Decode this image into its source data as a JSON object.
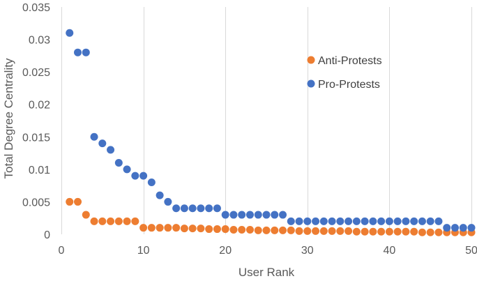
{
  "chart_data": {
    "type": "scatter",
    "title": "",
    "xlabel": "User Rank",
    "ylabel": "Total Degree Centrality",
    "xlim": [
      0,
      50
    ],
    "ylim": [
      0,
      0.035
    ],
    "x_ticks": [
      "0",
      "10",
      "20",
      "30",
      "40",
      "50"
    ],
    "y_ticks": [
      "0",
      "0.005",
      "0.01",
      "0.015",
      "0.02",
      "0.025",
      "0.03",
      "0.035"
    ],
    "grid": "vertical major gridlines on",
    "legend_position": "center-right",
    "series": [
      {
        "name": "Anti-Protests",
        "color": "#ed7d31",
        "x": [
          1,
          2,
          3,
          4,
          5,
          6,
          7,
          8,
          9,
          10,
          11,
          12,
          13,
          14,
          15,
          16,
          17,
          18,
          19,
          20,
          21,
          22,
          23,
          24,
          25,
          26,
          27,
          28,
          29,
          30,
          31,
          32,
          33,
          34,
          35,
          36,
          37,
          38,
          39,
          40,
          41,
          42,
          43,
          44,
          45,
          46,
          47,
          48,
          49,
          50
        ],
        "y": [
          0.005,
          0.005,
          0.003,
          0.002,
          0.002,
          0.002,
          0.002,
          0.002,
          0.002,
          0.001,
          0.001,
          0.001,
          0.001,
          0.001,
          0.0009,
          0.0009,
          0.0009,
          0.0008,
          0.0008,
          0.0008,
          0.0007,
          0.0007,
          0.0007,
          0.0006,
          0.0006,
          0.0006,
          0.0006,
          0.0006,
          0.0005,
          0.0005,
          0.0005,
          0.0005,
          0.0005,
          0.0005,
          0.0005,
          0.0004,
          0.0004,
          0.0004,
          0.0004,
          0.0004,
          0.0004,
          0.0004,
          0.0004,
          0.0003,
          0.0003,
          0.0003,
          0.0003,
          0.0003,
          0.0003,
          0.0003
        ]
      },
      {
        "name": "Pro-Protests",
        "color": "#4472c4",
        "x": [
          1,
          2,
          3,
          4,
          5,
          6,
          7,
          8,
          9,
          10,
          11,
          12,
          13,
          14,
          15,
          16,
          17,
          18,
          19,
          20,
          21,
          22,
          23,
          24,
          25,
          26,
          27,
          28,
          29,
          30,
          31,
          32,
          33,
          34,
          35,
          36,
          37,
          38,
          39,
          40,
          41,
          42,
          43,
          44,
          45,
          46,
          47,
          48,
          49,
          50
        ],
        "y": [
          0.031,
          0.028,
          0.028,
          0.015,
          0.014,
          0.013,
          0.011,
          0.01,
          0.009,
          0.009,
          0.008,
          0.006,
          0.005,
          0.004,
          0.004,
          0.004,
          0.004,
          0.004,
          0.004,
          0.003,
          0.003,
          0.003,
          0.003,
          0.003,
          0.003,
          0.003,
          0.003,
          0.002,
          0.002,
          0.002,
          0.002,
          0.002,
          0.002,
          0.002,
          0.002,
          0.002,
          0.002,
          0.002,
          0.002,
          0.002,
          0.002,
          0.002,
          0.002,
          0.002,
          0.002,
          0.002,
          0.001,
          0.001,
          0.001,
          0.001
        ]
      }
    ]
  }
}
